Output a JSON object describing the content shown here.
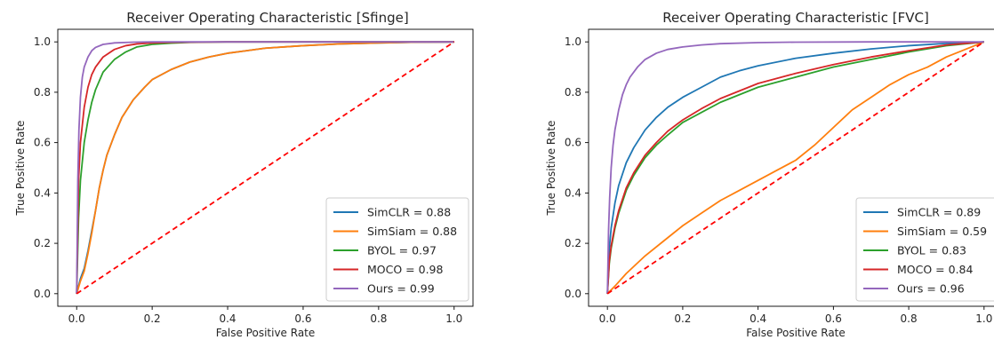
{
  "colors": {
    "SimCLR": "#1f77b4",
    "SimSiam": "#ff7f0e",
    "BYOL": "#2ca02c",
    "MOCO": "#d62728",
    "Ours": "#9467bd",
    "diagonal": "#ff0000"
  },
  "chart_data": [
    {
      "type": "line",
      "title": "Receiver Operating Characteristic [Sfinge]",
      "xlabel": "False Positive Rate",
      "ylabel": "True Positive Rate",
      "xlim": [
        -0.05,
        1.05
      ],
      "ylim": [
        -0.05,
        1.05
      ],
      "xticks": [
        "0.0",
        "0.2",
        "0.4",
        "0.6",
        "0.8",
        "1.0"
      ],
      "yticks": [
        "0.0",
        "0.2",
        "0.4",
        "0.6",
        "0.8",
        "1.0"
      ],
      "legend_position": "lower-right",
      "diagonal": {
        "style": "dashed",
        "x": [
          0,
          1
        ],
        "y": [
          0,
          1
        ]
      },
      "series": [
        {
          "name": "SimCLR = 0.88",
          "key": "SimCLR",
          "x": [
            0,
            0.01,
            0.02,
            0.03,
            0.04,
            0.05,
            0.06,
            0.07,
            0.08,
            0.1,
            0.12,
            0.15,
            0.18,
            0.2,
            0.25,
            0.3,
            0.35,
            0.4,
            0.45,
            0.5,
            0.6,
            0.7,
            0.8,
            0.9,
            1.0
          ],
          "y": [
            0,
            0.06,
            0.1,
            0.17,
            0.25,
            0.33,
            0.42,
            0.49,
            0.55,
            0.63,
            0.7,
            0.77,
            0.82,
            0.85,
            0.89,
            0.92,
            0.94,
            0.955,
            0.965,
            0.975,
            0.985,
            0.992,
            0.996,
            0.999,
            1.0
          ]
        },
        {
          "name": "SimSiam = 0.88",
          "key": "SimSiam",
          "x": [
            0,
            0.01,
            0.02,
            0.03,
            0.04,
            0.05,
            0.06,
            0.07,
            0.08,
            0.1,
            0.12,
            0.15,
            0.18,
            0.2,
            0.25,
            0.3,
            0.35,
            0.4,
            0.45,
            0.5,
            0.6,
            0.7,
            0.8,
            0.9,
            1.0
          ],
          "y": [
            0,
            0.05,
            0.09,
            0.16,
            0.24,
            0.33,
            0.42,
            0.49,
            0.55,
            0.63,
            0.7,
            0.77,
            0.82,
            0.85,
            0.89,
            0.92,
            0.94,
            0.955,
            0.965,
            0.975,
            0.985,
            0.992,
            0.996,
            0.999,
            1.0
          ]
        },
        {
          "name": "BYOL = 0.97",
          "key": "BYOL",
          "x": [
            0,
            0.005,
            0.01,
            0.02,
            0.03,
            0.04,
            0.05,
            0.07,
            0.1,
            0.13,
            0.16,
            0.2,
            0.25,
            0.3,
            0.4,
            0.5,
            0.7,
            1.0
          ],
          "y": [
            0,
            0.3,
            0.45,
            0.6,
            0.69,
            0.76,
            0.81,
            0.88,
            0.93,
            0.96,
            0.98,
            0.99,
            0.995,
            0.998,
            1.0,
            1.0,
            1.0,
            1.0
          ]
        },
        {
          "name": "MOCO = 0.98",
          "key": "MOCO",
          "x": [
            0,
            0.005,
            0.01,
            0.02,
            0.03,
            0.04,
            0.05,
            0.07,
            0.1,
            0.13,
            0.16,
            0.2,
            0.25,
            0.3,
            0.4,
            0.5,
            0.7,
            1.0
          ],
          "y": [
            0,
            0.45,
            0.6,
            0.74,
            0.82,
            0.87,
            0.9,
            0.94,
            0.97,
            0.985,
            0.992,
            0.996,
            0.998,
            0.999,
            1.0,
            1.0,
            1.0,
            1.0
          ]
        },
        {
          "name": "Ours = 0.99",
          "key": "Ours",
          "x": [
            0,
            0.003,
            0.006,
            0.01,
            0.015,
            0.02,
            0.03,
            0.04,
            0.05,
            0.07,
            0.1,
            0.15,
            0.2,
            0.3,
            0.5,
            1.0
          ],
          "y": [
            0,
            0.45,
            0.65,
            0.78,
            0.86,
            0.9,
            0.94,
            0.965,
            0.978,
            0.99,
            0.996,
            0.999,
            1.0,
            1.0,
            1.0,
            1.0
          ]
        }
      ]
    },
    {
      "type": "line",
      "title": "Receiver Operating Characteristic [FVC]",
      "xlabel": "False Positive Rate",
      "ylabel": "True Positive Rate",
      "xlim": [
        -0.05,
        1.05
      ],
      "ylim": [
        -0.05,
        1.05
      ],
      "xticks": [
        "0.0",
        "0.2",
        "0.4",
        "0.6",
        "0.8",
        "1.0"
      ],
      "yticks": [
        "0.0",
        "0.2",
        "0.4",
        "0.6",
        "0.8",
        "1.0"
      ],
      "legend_position": "lower-right",
      "diagonal": {
        "style": "dashed",
        "x": [
          0,
          1
        ],
        "y": [
          0,
          1
        ]
      },
      "series": [
        {
          "name": "SimCLR = 0.89",
          "key": "SimCLR",
          "x": [
            0,
            0.005,
            0.01,
            0.02,
            0.03,
            0.05,
            0.07,
            0.1,
            0.13,
            0.16,
            0.2,
            0.25,
            0.3,
            0.35,
            0.4,
            0.5,
            0.6,
            0.7,
            0.8,
            0.9,
            1.0
          ],
          "y": [
            0,
            0.18,
            0.26,
            0.36,
            0.43,
            0.52,
            0.58,
            0.65,
            0.7,
            0.74,
            0.78,
            0.82,
            0.86,
            0.885,
            0.905,
            0.935,
            0.955,
            0.972,
            0.985,
            0.994,
            1.0
          ]
        },
        {
          "name": "SimSiam = 0.59",
          "key": "SimSiam",
          "x": [
            0,
            0.02,
            0.05,
            0.1,
            0.15,
            0.2,
            0.25,
            0.3,
            0.35,
            0.4,
            0.45,
            0.5,
            0.55,
            0.6,
            0.65,
            0.7,
            0.75,
            0.8,
            0.85,
            0.9,
            0.95,
            1.0
          ],
          "y": [
            0,
            0.03,
            0.08,
            0.15,
            0.21,
            0.27,
            0.32,
            0.37,
            0.41,
            0.45,
            0.49,
            0.53,
            0.59,
            0.66,
            0.73,
            0.78,
            0.83,
            0.87,
            0.9,
            0.94,
            0.97,
            1.0
          ]
        },
        {
          "name": "BYOL = 0.83",
          "key": "BYOL",
          "x": [
            0,
            0.005,
            0.01,
            0.02,
            0.03,
            0.05,
            0.07,
            0.1,
            0.13,
            0.16,
            0.2,
            0.25,
            0.3,
            0.35,
            0.4,
            0.5,
            0.6,
            0.7,
            0.8,
            0.9,
            1.0
          ],
          "y": [
            0,
            0.12,
            0.18,
            0.26,
            0.32,
            0.41,
            0.47,
            0.54,
            0.59,
            0.63,
            0.68,
            0.72,
            0.76,
            0.79,
            0.82,
            0.86,
            0.9,
            0.93,
            0.96,
            0.985,
            1.0
          ]
        },
        {
          "name": "MOCO = 0.84",
          "key": "MOCO",
          "x": [
            0,
            0.005,
            0.01,
            0.02,
            0.03,
            0.05,
            0.07,
            0.1,
            0.13,
            0.16,
            0.2,
            0.25,
            0.3,
            0.35,
            0.4,
            0.5,
            0.6,
            0.7,
            0.8,
            0.9,
            1.0
          ],
          "y": [
            0,
            0.13,
            0.19,
            0.27,
            0.33,
            0.42,
            0.48,
            0.55,
            0.6,
            0.645,
            0.69,
            0.735,
            0.775,
            0.805,
            0.835,
            0.875,
            0.91,
            0.94,
            0.965,
            0.988,
            1.0
          ]
        },
        {
          "name": "Ours = 0.96",
          "key": "Ours",
          "x": [
            0,
            0.003,
            0.006,
            0.01,
            0.015,
            0.02,
            0.03,
            0.04,
            0.05,
            0.06,
            0.08,
            0.1,
            0.13,
            0.16,
            0.2,
            0.25,
            0.3,
            0.4,
            0.5,
            0.7,
            1.0
          ],
          "y": [
            0,
            0.25,
            0.38,
            0.5,
            0.59,
            0.65,
            0.73,
            0.79,
            0.83,
            0.86,
            0.9,
            0.93,
            0.955,
            0.97,
            0.98,
            0.988,
            0.993,
            0.997,
            0.999,
            1.0,
            1.0
          ]
        }
      ]
    }
  ]
}
